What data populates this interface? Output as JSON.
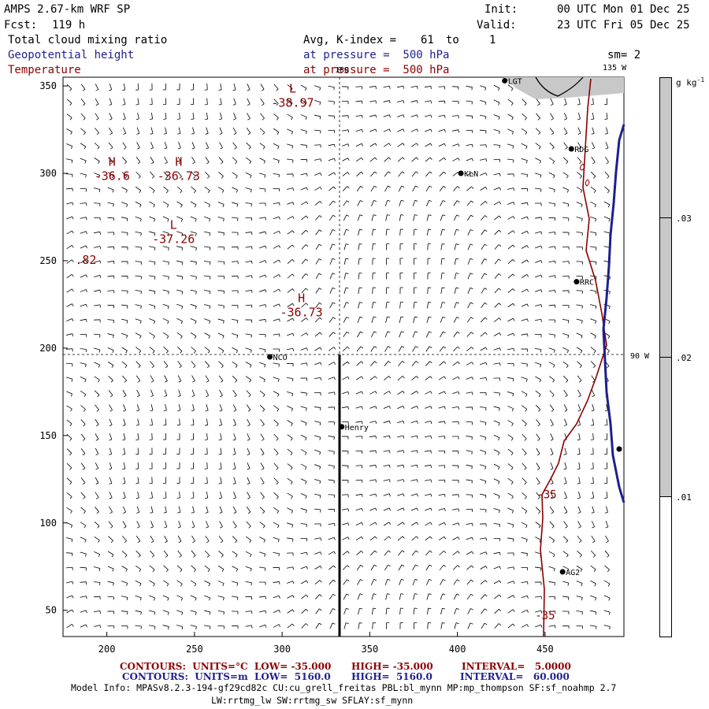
{
  "header": {
    "model": "AMPS 2.67-km WRF SP",
    "fcst_label": "Fcst:",
    "fcst_value": "119 h",
    "init_label": "Init:",
    "init_value": "00 UTC Mon 01 Dec 25",
    "valid_label": "Valid:",
    "valid_value": "23 UTC Fri 05 Dec 25"
  },
  "fields": {
    "cloud": "Total cloud mixing ratio",
    "geopotential": "Geopotential height",
    "temperature": "Temperature",
    "avg_label": "Avg, K-index =",
    "avg_from": "61",
    "avg_to_word": "to",
    "avg_to": "1",
    "pressure1": "at pressure =  500 hPa",
    "pressure2": "at pressure =  500 hPa",
    "smoothing": "sm= 2"
  },
  "map": {
    "x_ticks": [
      "200",
      "250",
      "300",
      "350",
      "400",
      "450"
    ],
    "y_ticks": [
      "350",
      "300",
      "250",
      "200",
      "150",
      "100",
      "50"
    ],
    "x_range": [
      175,
      495
    ],
    "y_range": [
      35,
      355
    ],
    "grid_line_labels": {
      "lon180": "180",
      "lon135": "135 W",
      "lon90": "90 W"
    },
    "stations": [
      {
        "id": "LGT",
        "x": 427,
        "y": 353
      },
      {
        "id": "RDG",
        "x": 465,
        "y": 314
      },
      {
        "id": "KLN",
        "x": 402,
        "y": 300
      },
      {
        "id": "RRC",
        "x": 468,
        "y": 238
      },
      {
        "id": "NCO",
        "x": 293,
        "y": 195
      },
      {
        "id": "Henry",
        "x": 334,
        "y": 155
      },
      {
        "id": "AG2",
        "x": 460,
        "y": 72
      }
    ],
    "extrema": [
      {
        "type": "L",
        "value": "-38.97",
        "x": 306,
        "y": 340
      },
      {
        "type": "H",
        "value": "-36.6",
        "x": 203,
        "y": 298
      },
      {
        "type": "H",
        "value": "-36.73",
        "x": 241,
        "y": 298
      },
      {
        "type": "L",
        "value": "-37.26",
        "x": 238,
        "y": 262
      },
      {
        "type": "",
        "value": ".82",
        "x": 188,
        "y": 250
      },
      {
        "type": "H",
        "value": "-36.73",
        "x": 311,
        "y": 220
      }
    ],
    "contour_labels": [
      {
        "value": "-35",
        "x": 451,
        "y": 114
      },
      {
        "value": "-35",
        "x": 450,
        "y": 45
      }
    ]
  },
  "colorbar": {
    "units": "g kg",
    "units_sup": "-1",
    "ticks": [
      ".03",
      ".02",
      ".01"
    ],
    "colors": {
      "fill": "#c8c8c8",
      "empty": "#ffffff"
    }
  },
  "footer": {
    "temp_contours": "CONTOURS:  UNITS=°C  LOW= -35.000",
    "temp_high": "HIGH= -35.000",
    "temp_interval": "INTERVAL=   5.0000",
    "geo_contours": "CONTOURS:  UNITS=m  LOW=  5160.0",
    "geo_high": "HIGH=  5160.0",
    "geo_interval": "INTERVAL=   60.000",
    "model_info": "Model Info: MPASv8.2.3-194-gf29cd82c CU:cu_grell_freitas PBL:bl_mynn MP:mp_thompson SF:sf_noahmp 2.7",
    "physics": "LW:rrtmg_lw SW:rrtmg_sw SFLAY:sf_mynn"
  },
  "colors": {
    "temperature": "#8b0000",
    "geopotential": "#1f1f8f",
    "cloud": "#c8c8c8"
  }
}
